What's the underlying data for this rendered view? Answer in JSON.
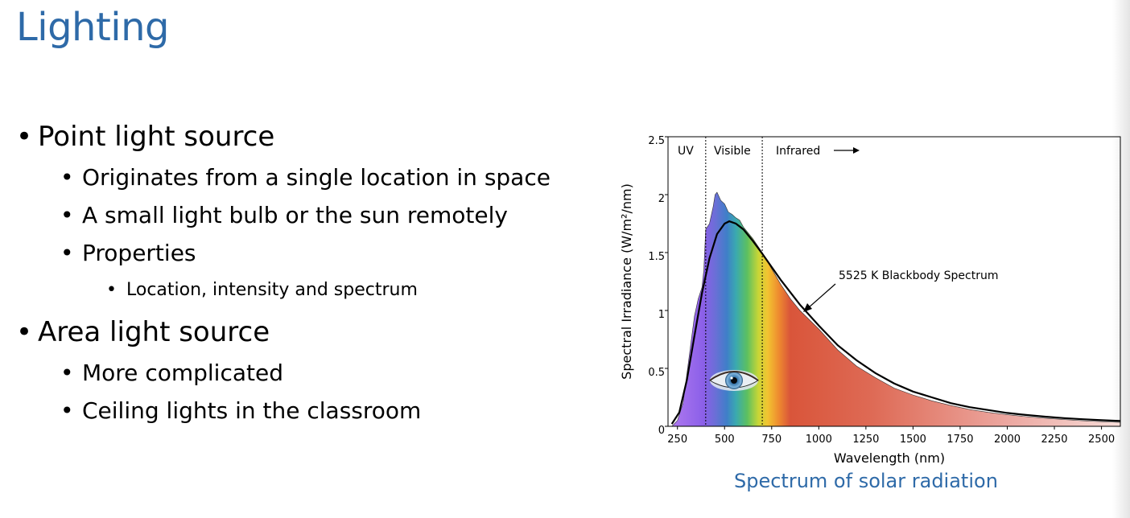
{
  "slide": {
    "title": "Lighting",
    "caption": "Spectrum of solar radiation"
  },
  "bullets": [
    {
      "level": 1,
      "text": "Point light source"
    },
    {
      "level": 2,
      "text": "Originates from a single location in space"
    },
    {
      "level": 2,
      "text": "A small light bulb or the sun remotely"
    },
    {
      "level": 2,
      "text": "Properties"
    },
    {
      "level": 3,
      "text": "Location, intensity and spectrum"
    },
    {
      "level": 1,
      "text": "Area light source"
    },
    {
      "level": 2,
      "text": "More complicated"
    },
    {
      "level": 2,
      "text": "Ceiling lights in the classroom"
    }
  ],
  "icons": [
    "bullet-dot",
    "eye-icon",
    "arrow-right-icon"
  ],
  "chart_data": {
    "type": "area",
    "xlabel": "Wavelength (nm)",
    "ylabel": "Spectral Irradiance (W/m²/nm)",
    "xlim": [
      200,
      2600
    ],
    "ylim": [
      0,
      2.5
    ],
    "x_ticks": [
      250,
      500,
      750,
      1000,
      1250,
      1500,
      1750,
      2000,
      2250,
      2500
    ],
    "y_ticks": [
      0,
      0.5,
      1,
      1.5,
      2,
      2.5
    ],
    "y_tick_labels": [
      "0",
      "0.5",
      "1",
      "1.5",
      "2",
      "2.5"
    ],
    "regions": [
      {
        "label": "UV",
        "from": 200,
        "to": 400
      },
      {
        "label": "Visible",
        "from": 400,
        "to": 700
      },
      {
        "label": "Infrared",
        "from": 700,
        "to": 2600
      }
    ],
    "annotation": "5525 K Blackbody Spectrum",
    "series": [
      {
        "name": "solar",
        "x": [
          220,
          250,
          280,
          300,
          320,
          340,
          360,
          380,
          390,
          400,
          420,
          440,
          450,
          460,
          480,
          500,
          520,
          540,
          560,
          580,
          600,
          650,
          700,
          750,
          800,
          850,
          900,
          950,
          1000,
          1100,
          1200,
          1300,
          1400,
          1500,
          1600,
          1700,
          1800,
          1900,
          2000,
          2100,
          2200,
          2300,
          2400,
          2500,
          2600
        ],
        "y": [
          0.0,
          0.05,
          0.2,
          0.45,
          0.7,
          0.95,
          1.1,
          1.2,
          1.35,
          1.7,
          1.75,
          1.9,
          2.0,
          2.02,
          1.95,
          1.92,
          1.85,
          1.83,
          1.8,
          1.78,
          1.72,
          1.62,
          1.5,
          1.36,
          1.22,
          1.1,
          1.0,
          0.92,
          0.84,
          0.66,
          0.52,
          0.42,
          0.33,
          0.27,
          0.22,
          0.18,
          0.145,
          0.12,
          0.1,
          0.083,
          0.07,
          0.058,
          0.048,
          0.04,
          0.034
        ]
      },
      {
        "name": "5525 K Blackbody Spectrum",
        "x": [
          220,
          260,
          300,
          340,
          380,
          420,
          460,
          500,
          525,
          560,
          600,
          650,
          700,
          800,
          900,
          1000,
          1100,
          1200,
          1300,
          1400,
          1500,
          1600,
          1700,
          1800,
          1900,
          2000,
          2100,
          2200,
          2300,
          2400,
          2500,
          2600
        ],
        "y": [
          0.02,
          0.12,
          0.4,
          0.78,
          1.15,
          1.45,
          1.66,
          1.75,
          1.77,
          1.75,
          1.7,
          1.6,
          1.49,
          1.26,
          1.05,
          0.87,
          0.7,
          0.57,
          0.46,
          0.37,
          0.3,
          0.25,
          0.2,
          0.165,
          0.14,
          0.115,
          0.098,
          0.083,
          0.071,
          0.061,
          0.053,
          0.046
        ]
      }
    ]
  }
}
